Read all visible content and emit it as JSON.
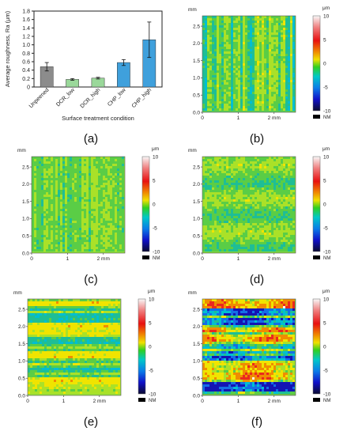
{
  "chart_data": [
    {
      "type": "bar",
      "panel": "(a)",
      "categories": [
        "Unpeened",
        "DCR_low",
        "DCR_high",
        "CHP_low",
        "CHP_high"
      ],
      "values": [
        0.48,
        0.18,
        0.21,
        0.58,
        1.12
      ],
      "errors": [
        0.1,
        0.02,
        0.02,
        0.07,
        0.42
      ],
      "bar_colors": [
        "#8c8c8c",
        "#9ad89a",
        "#9ad89a",
        "#3fa0dc",
        "#3fa0dc"
      ],
      "xlabel": "Surface treatment condition",
      "ylabel": "Average roughness, Ra (μm)",
      "ylim": [
        0,
        1.8
      ],
      "yticks": [
        "0",
        "0.2",
        "0.4",
        "0.6",
        "0.8",
        "1.0",
        "1.2",
        "1.4",
        "1.6",
        "1.8"
      ]
    },
    {
      "type": "heatmap",
      "panel": "(b)",
      "pattern": "vertical-stripes",
      "base_color": "#5ed05a"
    },
    {
      "type": "heatmap",
      "panel": "(c)",
      "pattern": "vertical-fine",
      "base_color": "#8fe03c"
    },
    {
      "type": "heatmap",
      "panel": "(d)",
      "pattern": "speckle",
      "base_color": "#82d83e"
    },
    {
      "type": "heatmap",
      "panel": "(e)",
      "pattern": "horizontal-bands",
      "base_color": "#9ae03a"
    },
    {
      "type": "heatmap",
      "panel": "(f)",
      "pattern": "horizontal-rough",
      "base_color": "#6cc848"
    }
  ],
  "map_common": {
    "y_unit": "mm",
    "yticks": [
      "0.0",
      "0.5",
      "1.0",
      "1.5",
      "2.0",
      "2.5"
    ],
    "xticks": [
      "0",
      "1",
      "2 mm"
    ],
    "colorbar_unit": "μm",
    "colorbar_ticks": [
      "10",
      "5",
      "0",
      "-5",
      "-10"
    ],
    "nm_label": "NM"
  },
  "labels": [
    "(a)",
    "(b)",
    "(c)",
    "(d)",
    "(e)",
    "(f)"
  ]
}
